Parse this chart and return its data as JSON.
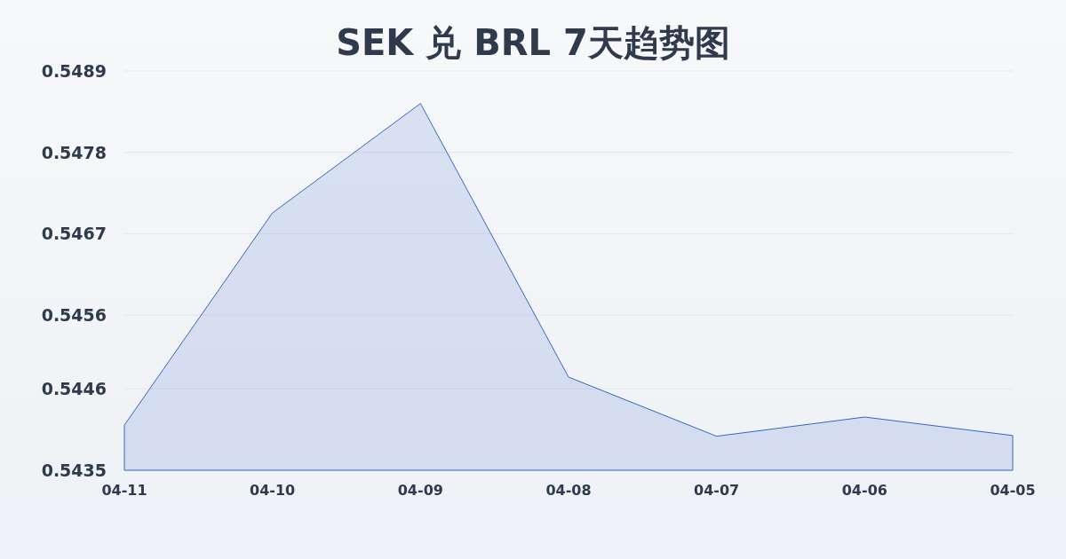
{
  "chart_data": {
    "type": "area",
    "title": "SEK 兑 BRL 7天趋势图",
    "categories": [
      "04-11",
      "04-10",
      "04-09",
      "04-08",
      "04-07",
      "04-06",
      "04-05"
    ],
    "series": [
      {
        "color": "#3366cc",
        "values": [
          0.54411,
          0.54698,
          0.54846,
          0.54476,
          0.54396,
          0.54422,
          0.54397
        ]
      }
    ],
    "ylim": [
      0.5435,
      0.5489
    ],
    "yticks": [
      0.5435,
      0.5446,
      0.5456,
      0.5467,
      0.5478,
      0.5489
    ],
    "grid": "y"
  }
}
